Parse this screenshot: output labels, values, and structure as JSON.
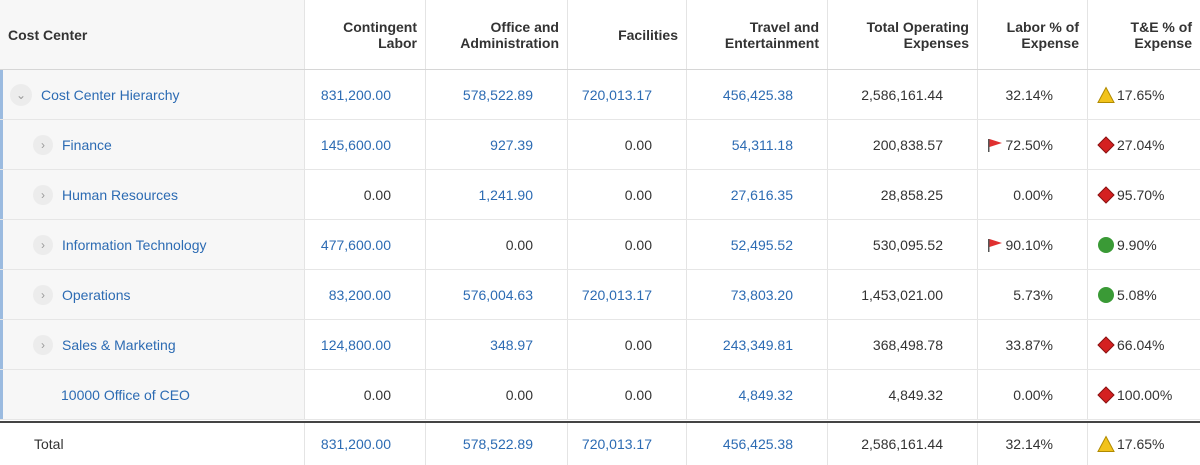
{
  "columns": {
    "cost_center": "Cost Center",
    "contingent_labor": "Contingent Labor",
    "office_admin": "Office and Administration",
    "facilities": "Facilities",
    "travel": "Travel and Entertainment",
    "total_opex": "Total Operating Expenses",
    "labor_pct": "Labor % of Expense",
    "te_pct": "T&E % of Expense"
  },
  "rows": [
    {
      "name": "Cost Center Hierarchy",
      "expand": "collapse-chevron-icon",
      "contingent": "831,200.00",
      "office": "578,522.89",
      "facilities": "720,013.17",
      "travel": "456,425.38",
      "total": "2,586,161.44",
      "labor": "32.14%",
      "labor_flag": false,
      "te": "17.65%",
      "te_icon": "warning-triangle-icon"
    },
    {
      "name": "Finance",
      "expand": "expand-chevron-icon",
      "contingent": "145,600.00",
      "office": "927.39",
      "facilities": "0.00",
      "travel": "54,311.18",
      "total": "200,838.57",
      "labor": "72.50%",
      "labor_flag": true,
      "te": "27.04%",
      "te_icon": "red-diamond-icon"
    },
    {
      "name": "Human Resources",
      "expand": "expand-chevron-icon",
      "contingent": "0.00",
      "office": "1,241.90",
      "facilities": "0.00",
      "travel": "27,616.35",
      "total": "28,858.25",
      "labor": "0.00%",
      "labor_flag": false,
      "te": "95.70%",
      "te_icon": "red-diamond-icon"
    },
    {
      "name": "Information Technology",
      "expand": "expand-chevron-icon",
      "contingent": "477,600.00",
      "office": "0.00",
      "facilities": "0.00",
      "travel": "52,495.52",
      "total": "530,095.52",
      "labor": "90.10%",
      "labor_flag": true,
      "te": "9.90%",
      "te_icon": "green-circle-icon"
    },
    {
      "name": "Operations",
      "expand": "expand-chevron-icon",
      "contingent": "83,200.00",
      "office": "576,004.63",
      "facilities": "720,013.17",
      "travel": "73,803.20",
      "total": "1,453,021.00",
      "labor": "5.73%",
      "labor_flag": false,
      "te": "5.08%",
      "te_icon": "green-circle-icon"
    },
    {
      "name": "Sales & Marketing",
      "expand": "expand-chevron-icon",
      "contingent": "124,800.00",
      "office": "348.97",
      "facilities": "0.00",
      "travel": "243,349.81",
      "total": "368,498.78",
      "labor": "33.87%",
      "labor_flag": false,
      "te": "66.04%",
      "te_icon": "red-diamond-icon"
    },
    {
      "name": "10000 Office of CEO",
      "expand": null,
      "contingent": "0.00",
      "office": "0.00",
      "facilities": "0.00",
      "travel": "4,849.32",
      "total": "4,849.32",
      "labor": "0.00%",
      "labor_flag": false,
      "te": "100.00%",
      "te_icon": "red-diamond-icon"
    }
  ],
  "total_row": {
    "label": "Total",
    "contingent": "831,200.00",
    "office": "578,522.89",
    "facilities": "720,013.17",
    "travel": "456,425.38",
    "total": "2,586,161.44",
    "labor": "32.14%",
    "te": "17.65%",
    "te_icon": "warning-triangle-icon"
  },
  "colors": {
    "link": "#2c6bb3",
    "flag": "#e03030",
    "diamond": "#d42020",
    "triangle": "#f2c31b",
    "circle": "#3a9a36"
  }
}
